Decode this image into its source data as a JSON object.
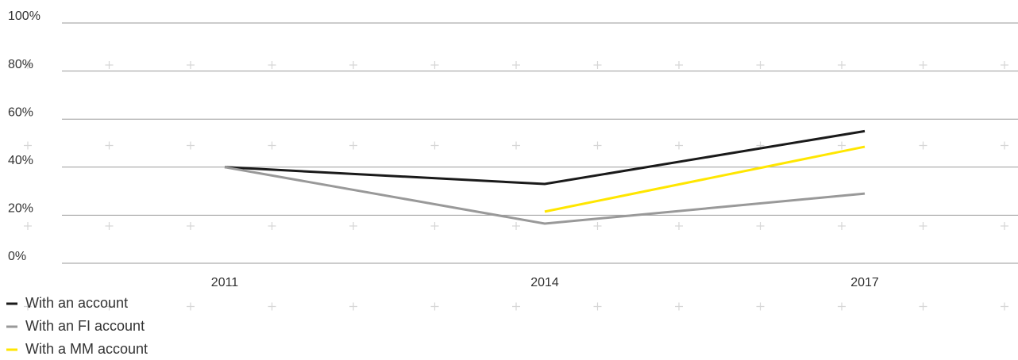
{
  "chart_data": {
    "type": "line",
    "categories": [
      "2011",
      "2014",
      "2017"
    ],
    "series": [
      {
        "name": "With an account",
        "color": "#1a1a1a",
        "values": [
          40,
          33,
          55
        ]
      },
      {
        "name": "With an FI account",
        "color": "#999999",
        "values": [
          40,
          16.5,
          29
        ]
      },
      {
        "name": "With a MM account",
        "color": "#ffe600",
        "values": [
          null,
          21.5,
          48.5
        ]
      }
    ],
    "ylim": [
      0,
      100
    ],
    "yticks": [
      {
        "value": 0,
        "label": "0%"
      },
      {
        "value": 20,
        "label": "20%"
      },
      {
        "value": 40,
        "label": "40%"
      },
      {
        "value": 60,
        "label": "60%"
      },
      {
        "value": 80,
        "label": "80%"
      },
      {
        "value": 100,
        "label": "100%"
      }
    ],
    "grid": true,
    "legend": "bottom-left"
  }
}
